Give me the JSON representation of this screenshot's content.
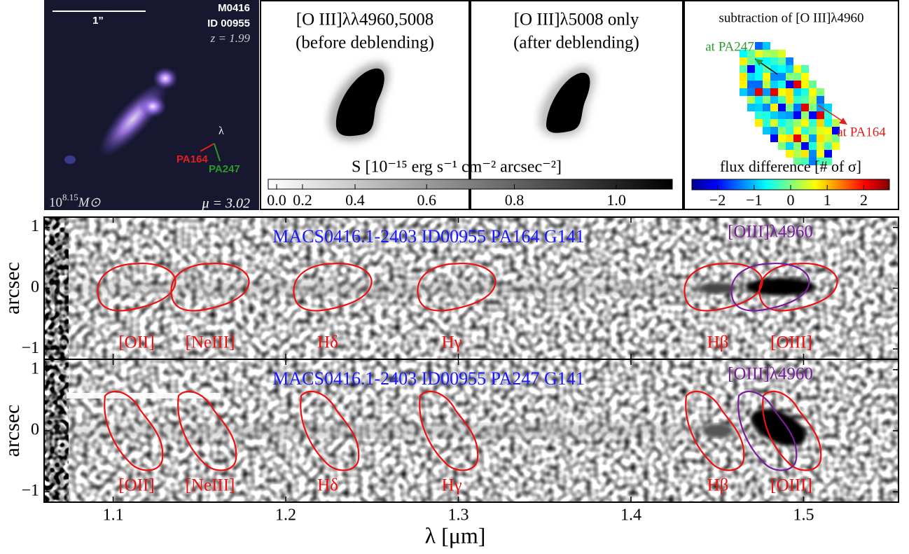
{
  "thumbnail": {
    "scale_bar": "1”",
    "field": "M0416",
    "id": "ID 00955",
    "redshift": "z = 1.99",
    "dispersion": "λ",
    "pa_a": "PA164",
    "pa_b": "PA247",
    "mass_base": "10",
    "mass_exponent": "8.15",
    "mass_unit": "M⊙",
    "magnification": "μ = 3.02"
  },
  "maps": [
    {
      "title": "[O III]λλ4960,5008",
      "subtitle": "(before deblending)"
    },
    {
      "title": "[O III]λ5008 only",
      "subtitle": "(after deblending)"
    },
    {
      "title": "subtraction of [O III]λ4960",
      "annotations": [
        "at PA247",
        "at PA164"
      ]
    }
  ],
  "flux_colorbar": {
    "label": "S [10⁻¹⁵ erg s⁻¹ cm⁻² arcsec⁻²]",
    "lim": [
      0,
      1.1
    ],
    "exponent": 1.6,
    "ticks": [
      {
        "value": 0,
        "label": "0.0"
      },
      0.2,
      0.4,
      0.6,
      0.8,
      {
        "value": 1,
        "label": "1.0"
      }
    ]
  },
  "difference_colorbar": {
    "label": "flux difference [# of σ]",
    "lim": [
      -2.7,
      2.7
    ],
    "ticks": [
      {
        "value": -2,
        "label": "−2"
      },
      {
        "value": -1,
        "label": "−1"
      },
      0,
      1,
      2
    ]
  },
  "spectra": {
    "xlabel": "λ [μm]",
    "ylabel": "arcsec",
    "xlim": [
      1.06,
      1.555
    ],
    "xticks": [
      1.1,
      1.2,
      1.3,
      1.4,
      1.5
    ],
    "ylim": [
      -1.17,
      1.17
    ],
    "yticks": [
      1,
      0,
      {
        "value": -1,
        "label": "−1"
      }
    ],
    "panels": [
      {
        "title": "MACS0416.1-2403 ID00955 PA164 G141",
        "annotation": "[OIII]λ4960",
        "lines": [
          "[OII]",
          "[NeIII]",
          "Hδ",
          "Hγ",
          "Hβ",
          "[OIII]"
        ]
      },
      {
        "title": "MACS0416.1-2403 ID00955 PA247 G141",
        "annotation": "[OIII]λ4960",
        "lines": [
          "[OII]",
          "[NeIII]",
          "Hδ",
          "Hγ",
          "Hβ",
          "[OIII]"
        ]
      }
    ]
  }
}
